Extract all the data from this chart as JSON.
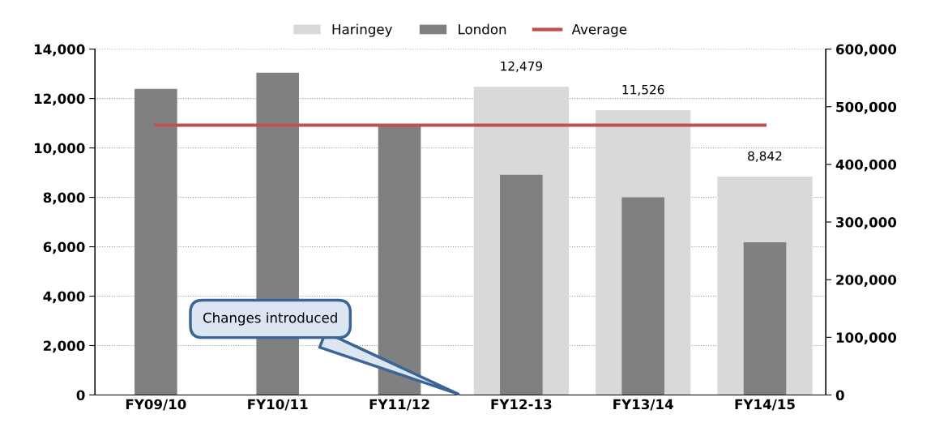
{
  "chart_data": {
    "type": "bar",
    "categories": [
      "FY09/10",
      "FY10/11",
      "FY11/12",
      "FY12-13",
      "FY13/14",
      "FY14/15"
    ],
    "series": [
      {
        "name": "Haringey",
        "color": "#d9d9d9",
        "values": [
          null,
          null,
          null,
          12479,
          11526,
          8842
        ],
        "value_labels": [
          null,
          null,
          null,
          "12,479",
          "11,526",
          "8,842"
        ]
      },
      {
        "name": "London",
        "color": "#808080",
        "axis": "y2",
        "values": [
          531000,
          559000,
          467000,
          382000,
          343000,
          265000
        ]
      },
      {
        "name": "Average",
        "type": "line",
        "color": "#c0504d",
        "axis": "y2",
        "values": [
          468000,
          468000,
          468000,
          468000,
          468000,
          468000
        ]
      }
    ],
    "ylim": [
      0,
      14000
    ],
    "yticks": [
      {
        "value": 0,
        "label": "0"
      },
      {
        "value": 2000,
        "label": "2,000"
      },
      {
        "value": 4000,
        "label": "4,000"
      },
      {
        "value": 6000,
        "label": "6,000"
      },
      {
        "value": 8000,
        "label": "8,000"
      },
      {
        "value": 10000,
        "label": "10,000"
      },
      {
        "value": 12000,
        "label": "12,000"
      },
      {
        "value": 14000,
        "label": "14,000"
      }
    ],
    "y2lim": [
      0,
      600000
    ],
    "y2ticks": [
      {
        "value": 0,
        "label": "0"
      },
      {
        "value": 100000,
        "label": "100,000"
      },
      {
        "value": 200000,
        "label": "200,000"
      },
      {
        "value": 300000,
        "label": "300,000"
      },
      {
        "value": 400000,
        "label": "400,000"
      },
      {
        "value": 500000,
        "label": "500,000"
      },
      {
        "value": 600000,
        "label": "600,000"
      }
    ],
    "grid": "y",
    "legend": "top",
    "annotations": [
      "Changes introduced"
    ]
  }
}
